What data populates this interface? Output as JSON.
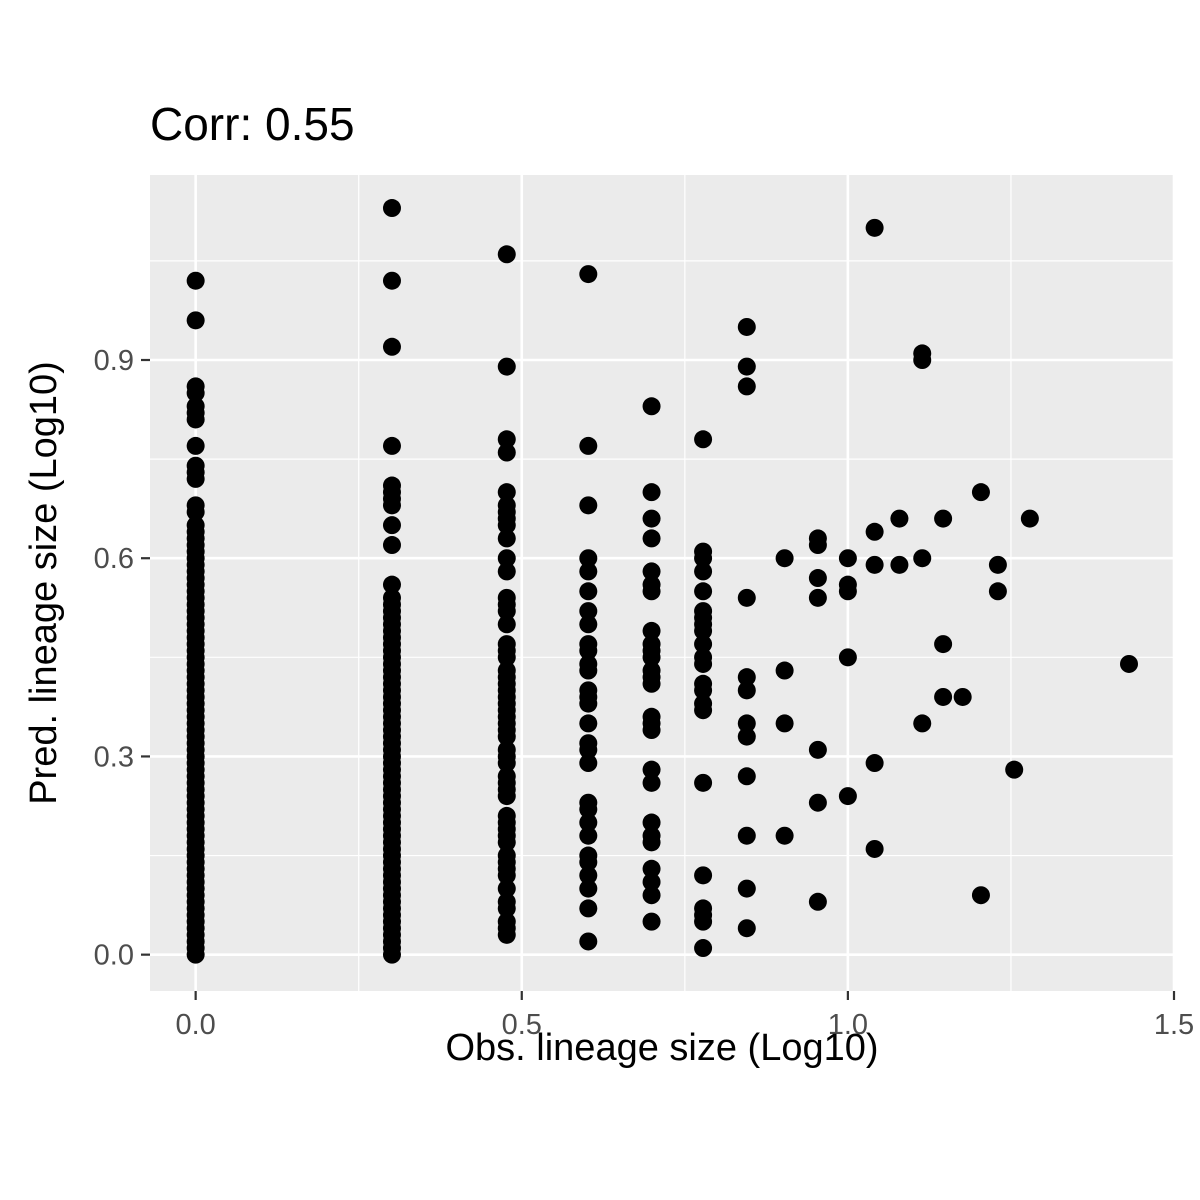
{
  "chart_data": {
    "type": "scatter",
    "title": "Corr: 0.55",
    "xlabel": "Obs. lineage size (Log10)",
    "ylabel": "Pred. lineage size (Log10)",
    "xlim": [
      -0.07,
      1.5
    ],
    "ylim": [
      -0.055,
      1.18
    ],
    "x_ticks": [
      0.0,
      0.5,
      1.0,
      1.5
    ],
    "x_tick_labels": [
      "0.0",
      "0.5",
      "1.0",
      "1.5"
    ],
    "y_ticks": [
      0.0,
      0.3,
      0.6,
      0.9
    ],
    "y_tick_labels": [
      "0.0",
      "0.3",
      "0.6",
      "0.9"
    ],
    "grid": true,
    "legend": "none",
    "colors": {
      "panel": "#ebebeb",
      "grid": "#ffffff",
      "point": "#000000",
      "tick_text": "#4d4d4d",
      "tick_mark": "#333333"
    },
    "points": [
      {
        "x": 0,
        "y": 1.02
      },
      {
        "x": 0,
        "y": 0.96
      },
      {
        "x": 0,
        "y": 0.86
      },
      {
        "x": 0,
        "y": 0.85
      },
      {
        "x": 0,
        "y": 0.83
      },
      {
        "x": 0,
        "y": 0.82
      },
      {
        "x": 0,
        "y": 0.81
      },
      {
        "x": 0,
        "y": 0.77
      },
      {
        "x": 0,
        "y": 0.74
      },
      {
        "x": 0,
        "y": 0.73
      },
      {
        "x": 0,
        "y": 0.72
      },
      {
        "x": 0,
        "y": 0.68
      },
      {
        "x": 0,
        "y": 0.67
      },
      {
        "x": 0,
        "y": 0.65
      },
      {
        "x": 0,
        "y": 0.64
      },
      {
        "x": 0,
        "y": 0.63
      },
      {
        "x": 0,
        "y": 0.62
      },
      {
        "x": 0,
        "y": 0.61
      },
      {
        "x": 0,
        "y": 0.6
      },
      {
        "x": 0,
        "y": 0.59
      },
      {
        "x": 0,
        "y": 0.58
      },
      {
        "x": 0,
        "y": 0.57
      },
      {
        "x": 0,
        "y": 0.56
      },
      {
        "x": 0,
        "y": 0.55
      },
      {
        "x": 0,
        "y": 0.54
      },
      {
        "x": 0,
        "y": 0.53
      },
      {
        "x": 0,
        "y": 0.52
      },
      {
        "x": 0,
        "y": 0.51
      },
      {
        "x": 0,
        "y": 0.5
      },
      {
        "x": 0,
        "y": 0.49
      },
      {
        "x": 0,
        "y": 0.48
      },
      {
        "x": 0,
        "y": 0.47
      },
      {
        "x": 0,
        "y": 0.46
      },
      {
        "x": 0,
        "y": 0.45
      },
      {
        "x": 0,
        "y": 0.44
      },
      {
        "x": 0,
        "y": 0.43
      },
      {
        "x": 0,
        "y": 0.42
      },
      {
        "x": 0,
        "y": 0.41
      },
      {
        "x": 0,
        "y": 0.4
      },
      {
        "x": 0,
        "y": 0.39
      },
      {
        "x": 0,
        "y": 0.38
      },
      {
        "x": 0,
        "y": 0.37
      },
      {
        "x": 0,
        "y": 0.36
      },
      {
        "x": 0,
        "y": 0.35
      },
      {
        "x": 0,
        "y": 0.34
      },
      {
        "x": 0,
        "y": 0.33
      },
      {
        "x": 0,
        "y": 0.32
      },
      {
        "x": 0,
        "y": 0.31
      },
      {
        "x": 0,
        "y": 0.3
      },
      {
        "x": 0,
        "y": 0.29
      },
      {
        "x": 0,
        "y": 0.28
      },
      {
        "x": 0,
        "y": 0.27
      },
      {
        "x": 0,
        "y": 0.26
      },
      {
        "x": 0,
        "y": 0.25
      },
      {
        "x": 0,
        "y": 0.24
      },
      {
        "x": 0,
        "y": 0.23
      },
      {
        "x": 0,
        "y": 0.22
      },
      {
        "x": 0,
        "y": 0.21
      },
      {
        "x": 0,
        "y": 0.2
      },
      {
        "x": 0,
        "y": 0.19
      },
      {
        "x": 0,
        "y": 0.18
      },
      {
        "x": 0,
        "y": 0.17
      },
      {
        "x": 0,
        "y": 0.16
      },
      {
        "x": 0,
        "y": 0.15
      },
      {
        "x": 0,
        "y": 0.14
      },
      {
        "x": 0,
        "y": 0.13
      },
      {
        "x": 0,
        "y": 0.12
      },
      {
        "x": 0,
        "y": 0.11
      },
      {
        "x": 0,
        "y": 0.1
      },
      {
        "x": 0,
        "y": 0.09
      },
      {
        "x": 0,
        "y": 0.08
      },
      {
        "x": 0,
        "y": 0.07
      },
      {
        "x": 0,
        "y": 0.06
      },
      {
        "x": 0,
        "y": 0.05
      },
      {
        "x": 0,
        "y": 0.04
      },
      {
        "x": 0,
        "y": 0.03
      },
      {
        "x": 0,
        "y": 0.02
      },
      {
        "x": 0,
        "y": 0.01
      },
      {
        "x": 0,
        "y": 0.0
      },
      {
        "x": 0.301,
        "y": 1.13
      },
      {
        "x": 0.301,
        "y": 1.02
      },
      {
        "x": 0.301,
        "y": 0.92
      },
      {
        "x": 0.301,
        "y": 0.77
      },
      {
        "x": 0.301,
        "y": 0.71
      },
      {
        "x": 0.301,
        "y": 0.7
      },
      {
        "x": 0.301,
        "y": 0.69
      },
      {
        "x": 0.301,
        "y": 0.68
      },
      {
        "x": 0.301,
        "y": 0.65
      },
      {
        "x": 0.301,
        "y": 0.62
      },
      {
        "x": 0.301,
        "y": 0.56
      },
      {
        "x": 0.301,
        "y": 0.54
      },
      {
        "x": 0.301,
        "y": 0.53
      },
      {
        "x": 0.301,
        "y": 0.52
      },
      {
        "x": 0.301,
        "y": 0.51
      },
      {
        "x": 0.301,
        "y": 0.5
      },
      {
        "x": 0.301,
        "y": 0.49
      },
      {
        "x": 0.301,
        "y": 0.48
      },
      {
        "x": 0.301,
        "y": 0.47
      },
      {
        "x": 0.301,
        "y": 0.46
      },
      {
        "x": 0.301,
        "y": 0.45
      },
      {
        "x": 0.301,
        "y": 0.44
      },
      {
        "x": 0.301,
        "y": 0.43
      },
      {
        "x": 0.301,
        "y": 0.42
      },
      {
        "x": 0.301,
        "y": 0.41
      },
      {
        "x": 0.301,
        "y": 0.4
      },
      {
        "x": 0.301,
        "y": 0.39
      },
      {
        "x": 0.301,
        "y": 0.38
      },
      {
        "x": 0.301,
        "y": 0.37
      },
      {
        "x": 0.301,
        "y": 0.36
      },
      {
        "x": 0.301,
        "y": 0.35
      },
      {
        "x": 0.301,
        "y": 0.34
      },
      {
        "x": 0.301,
        "y": 0.33
      },
      {
        "x": 0.301,
        "y": 0.32
      },
      {
        "x": 0.301,
        "y": 0.31
      },
      {
        "x": 0.301,
        "y": 0.3
      },
      {
        "x": 0.301,
        "y": 0.29
      },
      {
        "x": 0.301,
        "y": 0.28
      },
      {
        "x": 0.301,
        "y": 0.27
      },
      {
        "x": 0.301,
        "y": 0.26
      },
      {
        "x": 0.301,
        "y": 0.25
      },
      {
        "x": 0.301,
        "y": 0.24
      },
      {
        "x": 0.301,
        "y": 0.23
      },
      {
        "x": 0.301,
        "y": 0.22
      },
      {
        "x": 0.301,
        "y": 0.21
      },
      {
        "x": 0.301,
        "y": 0.2
      },
      {
        "x": 0.301,
        "y": 0.19
      },
      {
        "x": 0.301,
        "y": 0.18
      },
      {
        "x": 0.301,
        "y": 0.17
      },
      {
        "x": 0.301,
        "y": 0.16
      },
      {
        "x": 0.301,
        "y": 0.15
      },
      {
        "x": 0.301,
        "y": 0.14
      },
      {
        "x": 0.301,
        "y": 0.13
      },
      {
        "x": 0.301,
        "y": 0.12
      },
      {
        "x": 0.301,
        "y": 0.11
      },
      {
        "x": 0.301,
        "y": 0.1
      },
      {
        "x": 0.301,
        "y": 0.09
      },
      {
        "x": 0.301,
        "y": 0.08
      },
      {
        "x": 0.301,
        "y": 0.07
      },
      {
        "x": 0.301,
        "y": 0.06
      },
      {
        "x": 0.301,
        "y": 0.05
      },
      {
        "x": 0.301,
        "y": 0.04
      },
      {
        "x": 0.301,
        "y": 0.03
      },
      {
        "x": 0.301,
        "y": 0.02
      },
      {
        "x": 0.301,
        "y": 0.01
      },
      {
        "x": 0.301,
        "y": 0.0
      },
      {
        "x": 0.477,
        "y": 1.06
      },
      {
        "x": 0.477,
        "y": 0.89
      },
      {
        "x": 0.477,
        "y": 0.78
      },
      {
        "x": 0.477,
        "y": 0.76
      },
      {
        "x": 0.477,
        "y": 0.7
      },
      {
        "x": 0.477,
        "y": 0.68
      },
      {
        "x": 0.477,
        "y": 0.67
      },
      {
        "x": 0.477,
        "y": 0.66
      },
      {
        "x": 0.477,
        "y": 0.65
      },
      {
        "x": 0.477,
        "y": 0.63
      },
      {
        "x": 0.477,
        "y": 0.6
      },
      {
        "x": 0.477,
        "y": 0.58
      },
      {
        "x": 0.477,
        "y": 0.54
      },
      {
        "x": 0.477,
        "y": 0.53
      },
      {
        "x": 0.477,
        "y": 0.52
      },
      {
        "x": 0.477,
        "y": 0.5
      },
      {
        "x": 0.477,
        "y": 0.47
      },
      {
        "x": 0.477,
        "y": 0.46
      },
      {
        "x": 0.477,
        "y": 0.45
      },
      {
        "x": 0.477,
        "y": 0.43
      },
      {
        "x": 0.477,
        "y": 0.42
      },
      {
        "x": 0.477,
        "y": 0.41
      },
      {
        "x": 0.477,
        "y": 0.4
      },
      {
        "x": 0.477,
        "y": 0.39
      },
      {
        "x": 0.477,
        "y": 0.38
      },
      {
        "x": 0.477,
        "y": 0.37
      },
      {
        "x": 0.477,
        "y": 0.36
      },
      {
        "x": 0.477,
        "y": 0.35
      },
      {
        "x": 0.477,
        "y": 0.34
      },
      {
        "x": 0.477,
        "y": 0.33
      },
      {
        "x": 0.477,
        "y": 0.31
      },
      {
        "x": 0.477,
        "y": 0.3
      },
      {
        "x": 0.477,
        "y": 0.29
      },
      {
        "x": 0.477,
        "y": 0.27
      },
      {
        "x": 0.477,
        "y": 0.26
      },
      {
        "x": 0.477,
        "y": 0.25
      },
      {
        "x": 0.477,
        "y": 0.24
      },
      {
        "x": 0.477,
        "y": 0.21
      },
      {
        "x": 0.477,
        "y": 0.2
      },
      {
        "x": 0.477,
        "y": 0.19
      },
      {
        "x": 0.477,
        "y": 0.18
      },
      {
        "x": 0.477,
        "y": 0.17
      },
      {
        "x": 0.477,
        "y": 0.15
      },
      {
        "x": 0.477,
        "y": 0.14
      },
      {
        "x": 0.477,
        "y": 0.13
      },
      {
        "x": 0.477,
        "y": 0.12
      },
      {
        "x": 0.477,
        "y": 0.1
      },
      {
        "x": 0.477,
        "y": 0.08
      },
      {
        "x": 0.477,
        "y": 0.07
      },
      {
        "x": 0.477,
        "y": 0.05
      },
      {
        "x": 0.477,
        "y": 0.04
      },
      {
        "x": 0.477,
        "y": 0.03
      },
      {
        "x": 0.602,
        "y": 1.03
      },
      {
        "x": 0.602,
        "y": 0.77
      },
      {
        "x": 0.602,
        "y": 0.68
      },
      {
        "x": 0.602,
        "y": 0.6
      },
      {
        "x": 0.602,
        "y": 0.58
      },
      {
        "x": 0.602,
        "y": 0.55
      },
      {
        "x": 0.602,
        "y": 0.52
      },
      {
        "x": 0.602,
        "y": 0.5
      },
      {
        "x": 0.602,
        "y": 0.47
      },
      {
        "x": 0.602,
        "y": 0.46
      },
      {
        "x": 0.602,
        "y": 0.44
      },
      {
        "x": 0.602,
        "y": 0.43
      },
      {
        "x": 0.602,
        "y": 0.4
      },
      {
        "x": 0.602,
        "y": 0.39
      },
      {
        "x": 0.602,
        "y": 0.38
      },
      {
        "x": 0.602,
        "y": 0.35
      },
      {
        "x": 0.602,
        "y": 0.32
      },
      {
        "x": 0.602,
        "y": 0.31
      },
      {
        "x": 0.602,
        "y": 0.29
      },
      {
        "x": 0.602,
        "y": 0.23
      },
      {
        "x": 0.602,
        "y": 0.22
      },
      {
        "x": 0.602,
        "y": 0.2
      },
      {
        "x": 0.602,
        "y": 0.18
      },
      {
        "x": 0.602,
        "y": 0.15
      },
      {
        "x": 0.602,
        "y": 0.14
      },
      {
        "x": 0.602,
        "y": 0.12
      },
      {
        "x": 0.602,
        "y": 0.1
      },
      {
        "x": 0.602,
        "y": 0.07
      },
      {
        "x": 0.602,
        "y": 0.02
      },
      {
        "x": 0.699,
        "y": 0.83
      },
      {
        "x": 0.699,
        "y": 0.7
      },
      {
        "x": 0.699,
        "y": 0.66
      },
      {
        "x": 0.699,
        "y": 0.63
      },
      {
        "x": 0.699,
        "y": 0.58
      },
      {
        "x": 0.699,
        "y": 0.56
      },
      {
        "x": 0.699,
        "y": 0.55
      },
      {
        "x": 0.699,
        "y": 0.49
      },
      {
        "x": 0.699,
        "y": 0.47
      },
      {
        "x": 0.699,
        "y": 0.46
      },
      {
        "x": 0.699,
        "y": 0.45
      },
      {
        "x": 0.699,
        "y": 0.43
      },
      {
        "x": 0.699,
        "y": 0.42
      },
      {
        "x": 0.699,
        "y": 0.41
      },
      {
        "x": 0.699,
        "y": 0.36
      },
      {
        "x": 0.699,
        "y": 0.35
      },
      {
        "x": 0.699,
        "y": 0.34
      },
      {
        "x": 0.699,
        "y": 0.28
      },
      {
        "x": 0.699,
        "y": 0.26
      },
      {
        "x": 0.699,
        "y": 0.2
      },
      {
        "x": 0.699,
        "y": 0.18
      },
      {
        "x": 0.699,
        "y": 0.17
      },
      {
        "x": 0.699,
        "y": 0.13
      },
      {
        "x": 0.699,
        "y": 0.11
      },
      {
        "x": 0.699,
        "y": 0.09
      },
      {
        "x": 0.699,
        "y": 0.05
      },
      {
        "x": 0.778,
        "y": 0.78
      },
      {
        "x": 0.778,
        "y": 0.61
      },
      {
        "x": 0.778,
        "y": 0.6
      },
      {
        "x": 0.778,
        "y": 0.58
      },
      {
        "x": 0.778,
        "y": 0.55
      },
      {
        "x": 0.778,
        "y": 0.52
      },
      {
        "x": 0.778,
        "y": 0.51
      },
      {
        "x": 0.778,
        "y": 0.5
      },
      {
        "x": 0.778,
        "y": 0.49
      },
      {
        "x": 0.778,
        "y": 0.47
      },
      {
        "x": 0.778,
        "y": 0.45
      },
      {
        "x": 0.778,
        "y": 0.44
      },
      {
        "x": 0.778,
        "y": 0.41
      },
      {
        "x": 0.778,
        "y": 0.4
      },
      {
        "x": 0.778,
        "y": 0.38
      },
      {
        "x": 0.778,
        "y": 0.37
      },
      {
        "x": 0.778,
        "y": 0.26
      },
      {
        "x": 0.778,
        "y": 0.12
      },
      {
        "x": 0.778,
        "y": 0.07
      },
      {
        "x": 0.778,
        "y": 0.06
      },
      {
        "x": 0.778,
        "y": 0.05
      },
      {
        "x": 0.778,
        "y": 0.01
      },
      {
        "x": 0.845,
        "y": 0.95
      },
      {
        "x": 0.845,
        "y": 0.89
      },
      {
        "x": 0.845,
        "y": 0.86
      },
      {
        "x": 0.845,
        "y": 0.54
      },
      {
        "x": 0.845,
        "y": 0.42
      },
      {
        "x": 0.845,
        "y": 0.4
      },
      {
        "x": 0.845,
        "y": 0.35
      },
      {
        "x": 0.845,
        "y": 0.33
      },
      {
        "x": 0.845,
        "y": 0.27
      },
      {
        "x": 0.845,
        "y": 0.18
      },
      {
        "x": 0.845,
        "y": 0.1
      },
      {
        "x": 0.845,
        "y": 0.04
      },
      {
        "x": 0.903,
        "y": 0.6
      },
      {
        "x": 0.903,
        "y": 0.43
      },
      {
        "x": 0.903,
        "y": 0.35
      },
      {
        "x": 0.903,
        "y": 0.18
      },
      {
        "x": 0.954,
        "y": 0.63
      },
      {
        "x": 0.954,
        "y": 0.62
      },
      {
        "x": 0.954,
        "y": 0.57
      },
      {
        "x": 0.954,
        "y": 0.54
      },
      {
        "x": 0.954,
        "y": 0.31
      },
      {
        "x": 0.954,
        "y": 0.23
      },
      {
        "x": 0.954,
        "y": 0.08
      },
      {
        "x": 1.0,
        "y": 0.6
      },
      {
        "x": 1.0,
        "y": 0.56
      },
      {
        "x": 1.0,
        "y": 0.55
      },
      {
        "x": 1.0,
        "y": 0.45
      },
      {
        "x": 1.0,
        "y": 0.24
      },
      {
        "x": 1.041,
        "y": 1.1
      },
      {
        "x": 1.041,
        "y": 0.64
      },
      {
        "x": 1.041,
        "y": 0.59
      },
      {
        "x": 1.041,
        "y": 0.29
      },
      {
        "x": 1.041,
        "y": 0.16
      },
      {
        "x": 1.079,
        "y": 0.66
      },
      {
        "x": 1.079,
        "y": 0.59
      },
      {
        "x": 1.114,
        "y": 0.91
      },
      {
        "x": 1.114,
        "y": 0.9
      },
      {
        "x": 1.114,
        "y": 0.6
      },
      {
        "x": 1.114,
        "y": 0.35
      },
      {
        "x": 1.146,
        "y": 0.66
      },
      {
        "x": 1.146,
        "y": 0.47
      },
      {
        "x": 1.146,
        "y": 0.39
      },
      {
        "x": 1.176,
        "y": 0.39
      },
      {
        "x": 1.204,
        "y": 0.7
      },
      {
        "x": 1.204,
        "y": 0.09
      },
      {
        "x": 1.23,
        "y": 0.59
      },
      {
        "x": 1.23,
        "y": 0.55
      },
      {
        "x": 1.255,
        "y": 0.28
      },
      {
        "x": 1.279,
        "y": 0.66
      },
      {
        "x": 1.431,
        "y": 0.44
      }
    ]
  }
}
